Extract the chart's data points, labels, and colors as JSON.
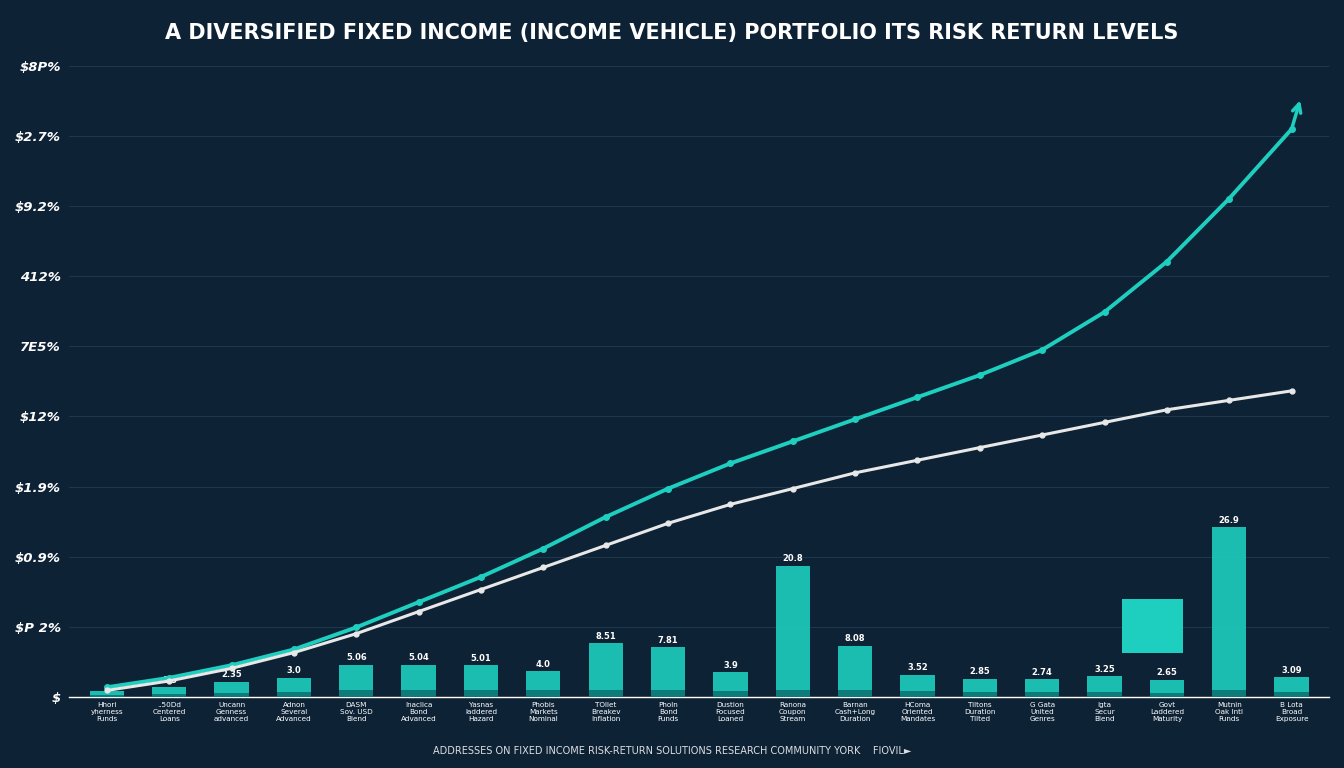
{
  "title": "A DIVERSIFIED FIXED INCOME (INCOME VEHICLE) PORTFOLIO ITS RISK RETURN LEVELS",
  "background_color": "#0e2235",
  "grid_color": "#1e3a52",
  "text_color": "#ffffff",
  "bar_color": "#1ecfbf",
  "bar_color_dark": "#0a7070",
  "line1_color": "#1ecfbf",
  "line2_color": "#e8e8e8",
  "categories": [
    "Hhori\nyherness\nFunds",
    "..50Dd\nCentered\nLoans",
    "Uncann\nGenness\nadvanced",
    "Adnon\nSeveral\nAdvanced",
    "DASM\nSov. USD\nBlend",
    "Inaclica\nBond\nAdvanced",
    "Yasnas\nladdered\nHazard",
    "Phobis\nMarkets\nNominal",
    "TOllet\nBreakev\nInflation",
    "Pholn\nBond\nFunds",
    "Dustion\nFocused\nLoaned",
    "Ranona\nCoupon\nStream",
    "Barnan\nCash+Long\nDuration",
    "HComa\nOriented\nMandates",
    "Tiltons\nDuration\nTilted",
    "G Gata\nUnited\nGenres",
    "Igta\nSecur\nBlend",
    "Govt\nLaddered\nMaturity",
    "Mutnin\nOak Intl\nFunds",
    "B Lota\nBroad\nExposure"
  ],
  "bar_values": [
    0.9,
    1.5,
    2.35,
    3.0,
    5.06,
    5.04,
    5.01,
    4.0,
    8.51,
    7.81,
    3.9,
    20.8,
    8.08,
    3.52,
    2.85,
    2.74,
    3.25,
    2.65,
    26.9,
    3.09
  ],
  "line1_values": [
    1.5,
    3.0,
    5.0,
    7.5,
    11.0,
    15.0,
    19.0,
    23.5,
    28.5,
    33.0,
    37.0,
    40.5,
    44.0,
    47.5,
    51.0,
    55.0,
    61.0,
    69.0,
    79.0,
    90.0
  ],
  "line2_values": [
    1.0,
    2.5,
    4.5,
    7.0,
    10.0,
    13.5,
    17.0,
    20.5,
    24.0,
    27.5,
    30.5,
    33.0,
    35.5,
    37.5,
    39.5,
    41.5,
    43.5,
    45.5,
    47.0,
    48.5
  ],
  "ylim": [
    0,
    100
  ],
  "ytick_positions": [
    0,
    11.11,
    22.22,
    33.33,
    44.44,
    55.55,
    66.66,
    77.77,
    88.88,
    100
  ],
  "ytick_labels": [
    "$",
    "$P 2%",
    "$0.9%",
    "$1.9%",
    "$12%",
    "7E5%",
    "412%",
    "$9.2%",
    "$2.7%",
    "$8P%"
  ],
  "source_text": "ADDRESSES ON FIXED INCOME RISK-RETURN SOLUTIONS RESEARCH COMMUNITY YORK    FIOVIL►",
  "figsize": [
    13.44,
    7.68
  ],
  "dpi": 100
}
